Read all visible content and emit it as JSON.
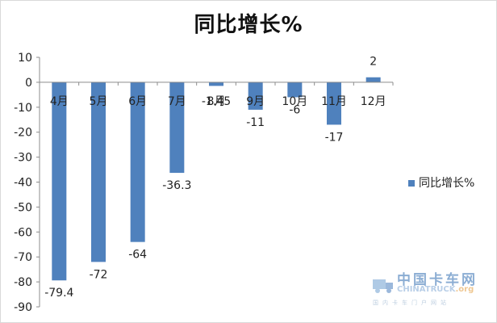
{
  "chart_data": {
    "type": "bar",
    "title": "同比增长%",
    "categories": [
      "4月",
      "5月",
      "6月",
      "7月",
      "8月",
      "9月",
      "10月",
      "11月",
      "12月"
    ],
    "series": [
      {
        "name": "同比增长%",
        "values": [
          -79.4,
          -72,
          -64,
          -36.3,
          -1.45,
          -11,
          -6,
          -17,
          2
        ]
      }
    ],
    "data_labels": [
      "-79.4",
      "-72",
      "-64",
      "-36.3",
      "-1.45",
      "-11",
      "-6",
      "-17",
      "2"
    ],
    "ylim": [
      -90,
      10
    ],
    "yticks": [
      10,
      0,
      -10,
      -20,
      -30,
      -40,
      -50,
      -60,
      -70,
      -80,
      -90
    ],
    "grid": false,
    "legend_position": "right",
    "bar_color": "#4f81bd"
  },
  "watermark": {
    "logo": "中国卡车网",
    "brand": "CHINATRUCK",
    "domain": ".org",
    "tagline": "国内卡车门户网站"
  }
}
